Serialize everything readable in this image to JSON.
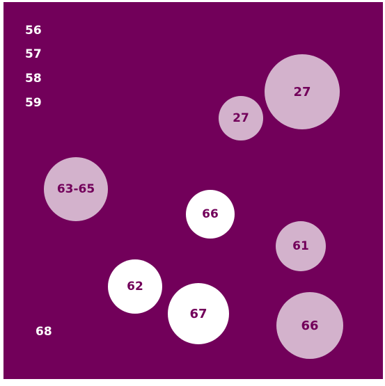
{
  "colors": {
    "background": "#72005a",
    "light_circle": "#d3b2cc",
    "white_circle": "#ffffff",
    "label_on_circle": "#72005a",
    "side_label": "#ffffff"
  },
  "side_labels": [
    "56",
    "57",
    "58",
    "59",
    "68"
  ],
  "circles": [
    {
      "label": "27",
      "fill": "light"
    },
    {
      "label": "27",
      "fill": "light"
    },
    {
      "label": "63-65",
      "fill": "light"
    },
    {
      "label": "66",
      "fill": "white"
    },
    {
      "label": "61",
      "fill": "light"
    },
    {
      "label": "62",
      "fill": "white"
    },
    {
      "label": "67",
      "fill": "white"
    },
    {
      "label": "66",
      "fill": "light"
    }
  ]
}
